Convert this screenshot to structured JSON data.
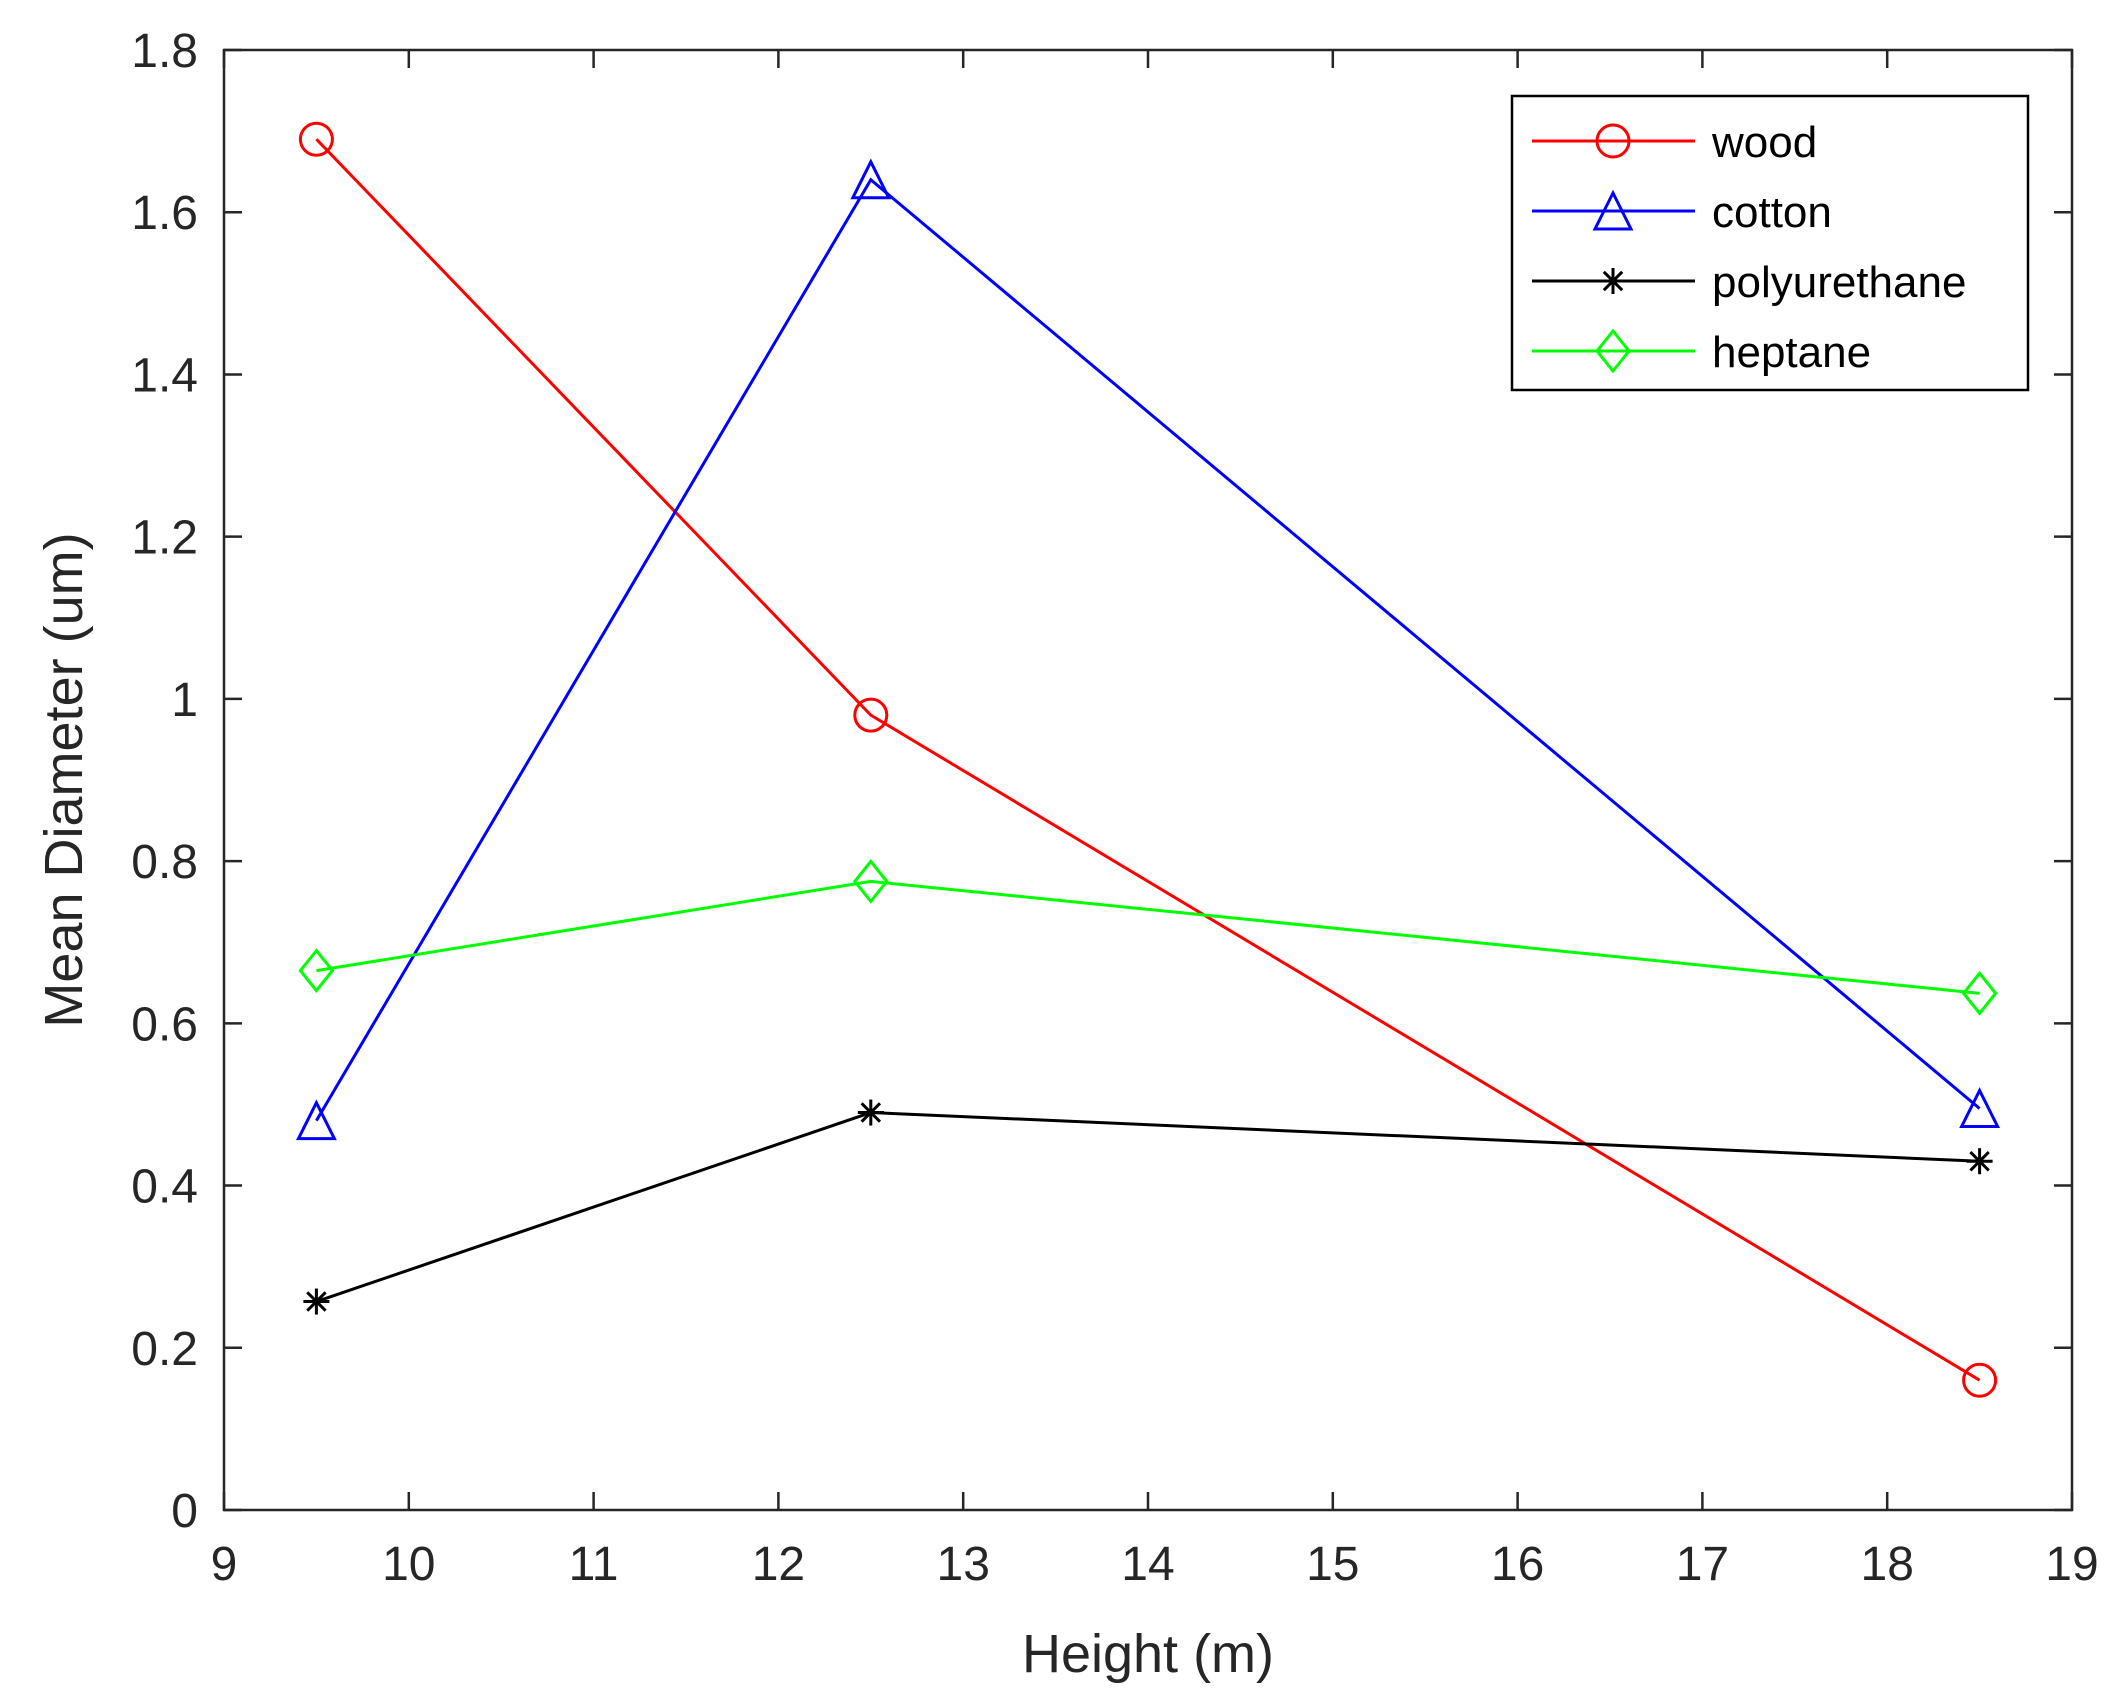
{
  "chart_data": {
    "type": "line",
    "title": "",
    "xlabel": "Height (m)",
    "ylabel": "Mean Diameter (um)",
    "xlim": [
      9,
      19
    ],
    "ylim": [
      0,
      1.8
    ],
    "xticks": [
      9,
      10,
      11,
      12,
      13,
      14,
      15,
      16,
      17,
      18,
      19
    ],
    "yticks": [
      0,
      0.2,
      0.4,
      0.6,
      0.8,
      1,
      1.2,
      1.4,
      1.6,
      1.8
    ],
    "xtick_labels": [
      "9",
      "10",
      "11",
      "12",
      "13",
      "14",
      "15",
      "16",
      "17",
      "18",
      "19"
    ],
    "ytick_labels": [
      "0",
      "0.2",
      "0.4",
      "0.6",
      "0.8",
      "1",
      "1.2",
      "1.4",
      "1.6",
      "1.8"
    ],
    "grid": false,
    "legend_position": "top-right",
    "x": [
      9.5,
      12.5,
      18.5
    ],
    "series": [
      {
        "name": "wood",
        "color": "#ff0000",
        "marker": "circle",
        "values": [
          1.69,
          0.98,
          0.16
        ]
      },
      {
        "name": "cotton",
        "color": "#0000ff",
        "marker": "triangle",
        "values": [
          0.48,
          1.64,
          0.495
        ]
      },
      {
        "name": "polyurethane",
        "color": "#000000",
        "marker": "asterisk",
        "values": [
          0.257,
          0.49,
          0.43
        ]
      },
      {
        "name": "heptane",
        "color": "#00ff00",
        "marker": "diamond",
        "values": [
          0.665,
          0.775,
          0.637
        ]
      }
    ]
  }
}
